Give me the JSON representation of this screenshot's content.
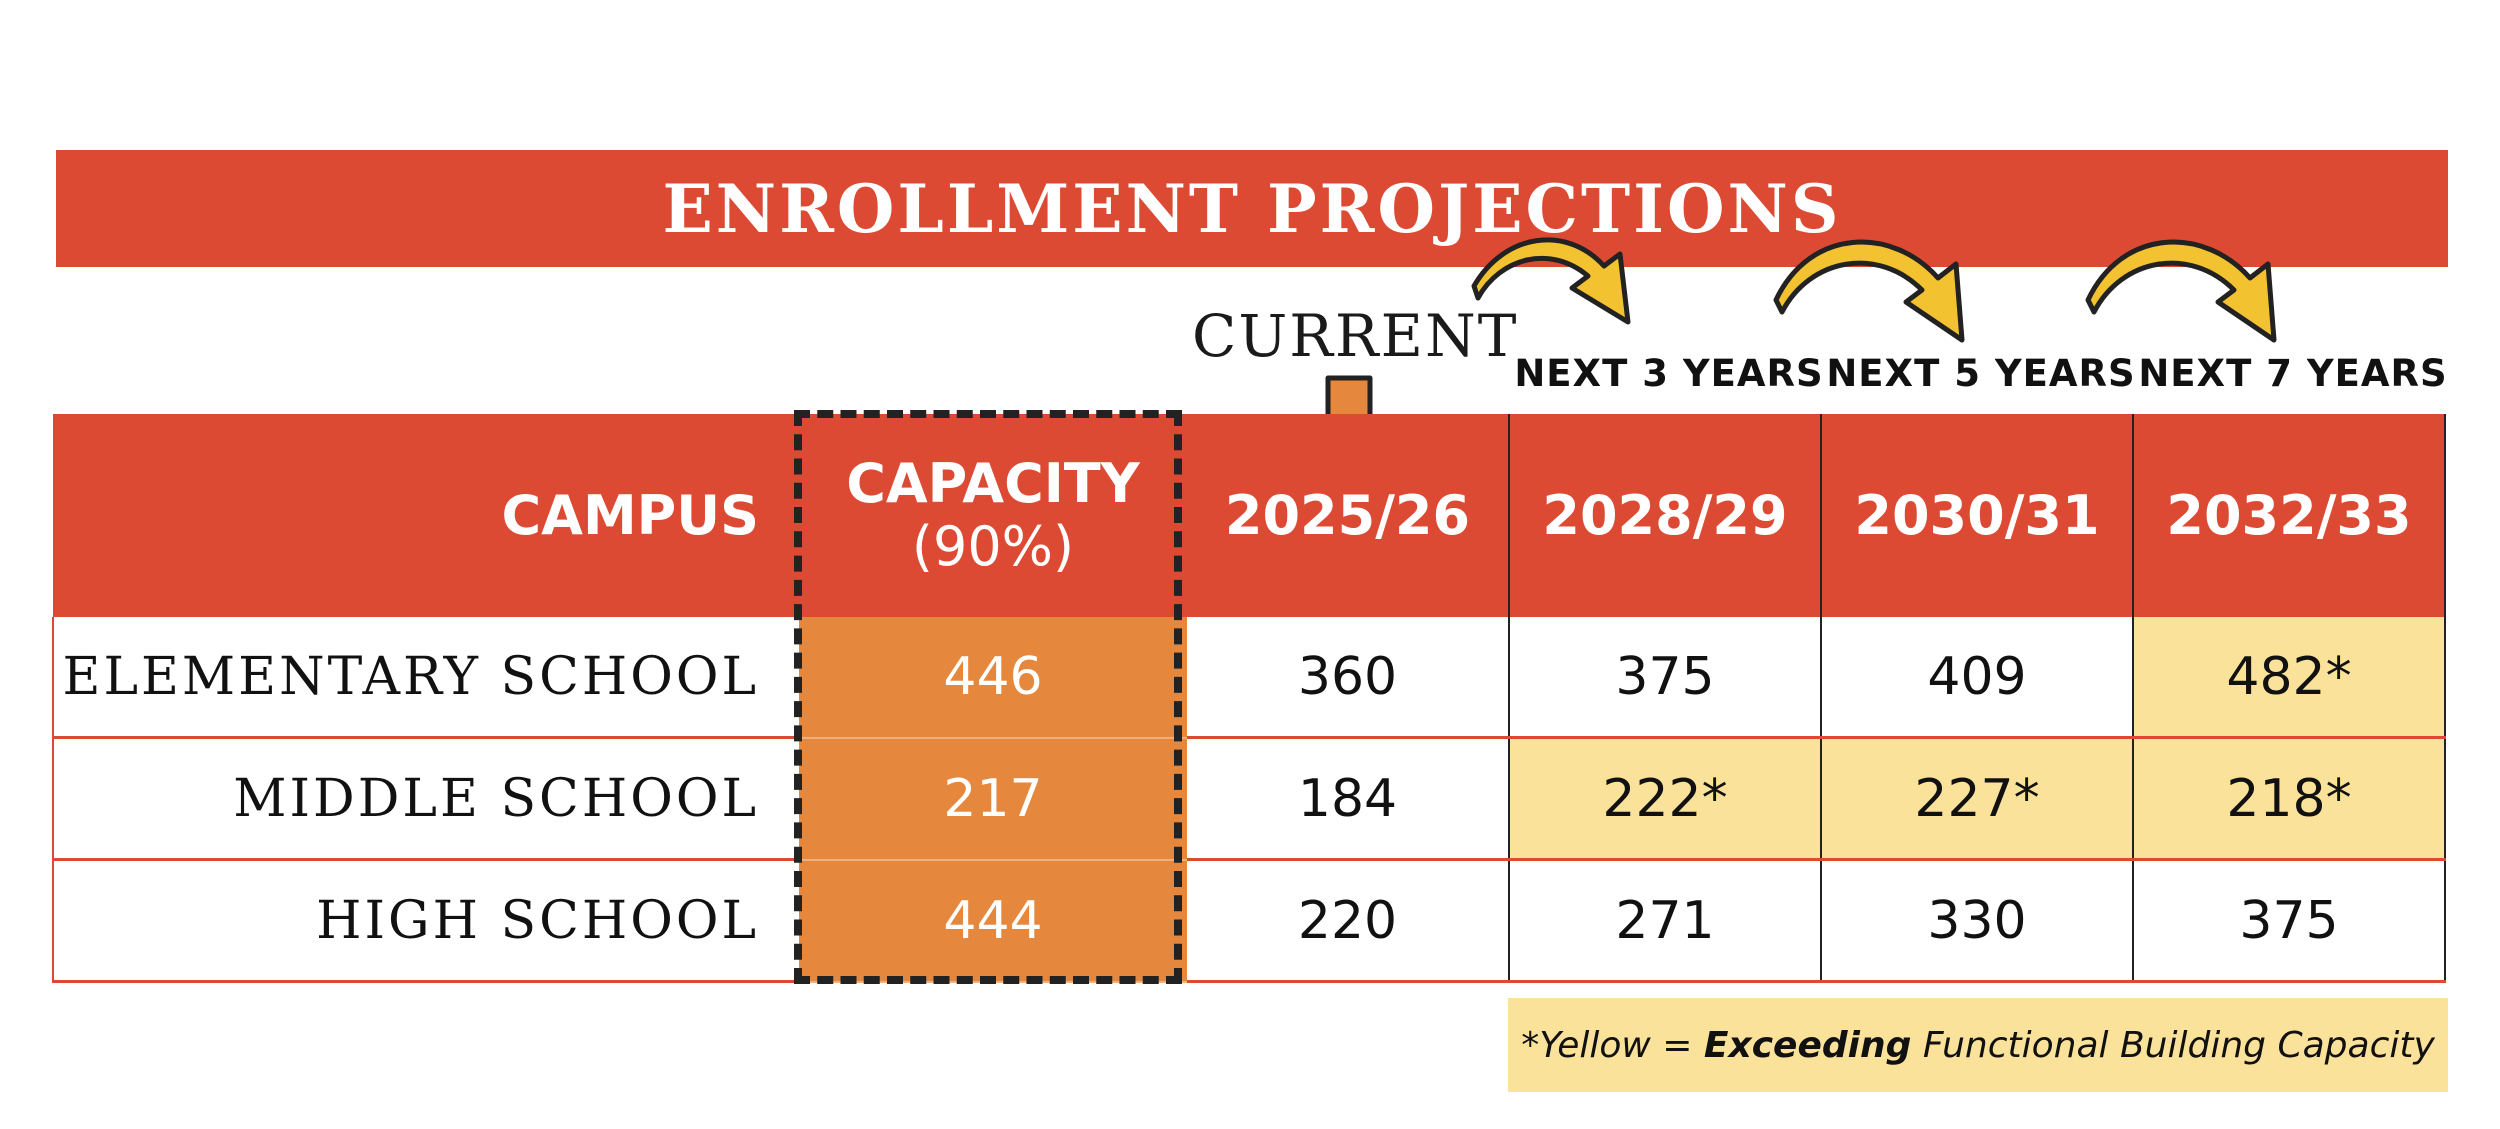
{
  "title": "ENROLLMENT PROJECTIONS",
  "current_label": "CURRENT",
  "period_labels": [
    "NEXT 3 YEARS",
    "NEXT 5 YEARS",
    "NEXT 7 YEARS"
  ],
  "chart_data": {
    "type": "table",
    "columns": [
      "CAMPUS",
      "CAPACITY (90%)",
      "2025/26",
      "2028/29",
      "2030/31",
      "2032/33"
    ],
    "capacity_header": {
      "line1": "CAPACITY",
      "line2": "(90%)"
    },
    "rows": [
      {
        "campus": "ELEMENTARY SCHOOL",
        "capacity": "446",
        "y2025": "360",
        "y2028": "375",
        "y2030": "409",
        "y2032": "482*"
      },
      {
        "campus": "MIDDLE SCHOOL",
        "capacity": "217",
        "y2025": "184",
        "y2028": "222*",
        "y2030": "227*",
        "y2032": "218*"
      },
      {
        "campus": "HIGH SCHOOL",
        "capacity": "444",
        "y2025": "220",
        "y2028": "271",
        "y2030": "330",
        "y2032": "375"
      }
    ],
    "exceeding_capacity": [
      {
        "campus": "ELEMENTARY SCHOOL",
        "years": [
          "2032/33"
        ]
      },
      {
        "campus": "MIDDLE SCHOOL",
        "years": [
          "2028/29",
          "2030/31",
          "2032/33"
        ]
      }
    ]
  },
  "legend": {
    "prefix": "*Yellow = ",
    "bold": "Exceeding",
    "suffix": " Functional Building Capacity"
  },
  "colors": {
    "banner": "#dd4a33",
    "capacity_fill": "#e5873c",
    "highlight": "#fbe29b",
    "arrow": "#f2c230"
  }
}
